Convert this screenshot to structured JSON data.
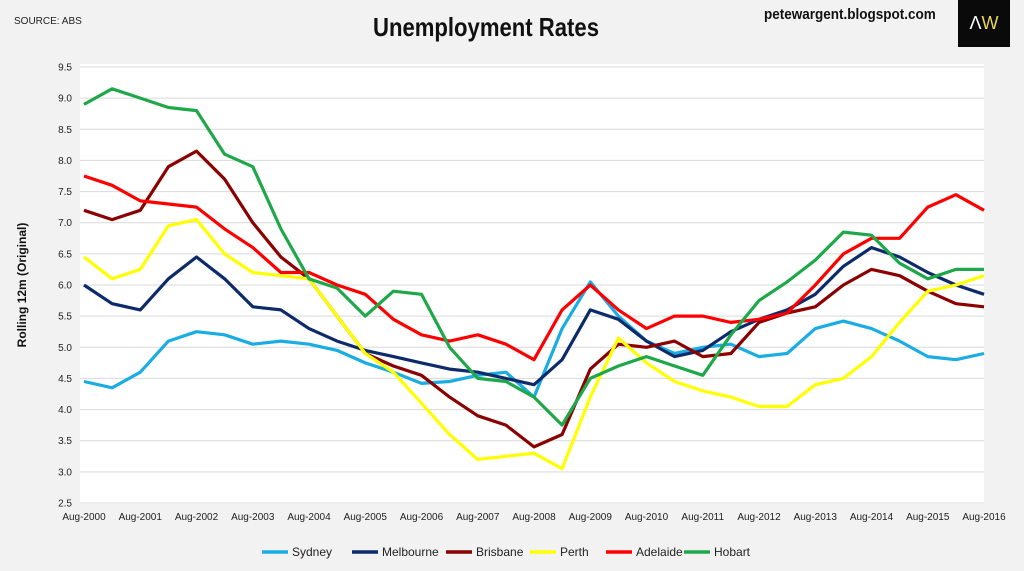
{
  "header": {
    "source": "SOURCE: ABS",
    "site": "petewargent.blogspot.com",
    "logo_text": "AW"
  },
  "chart_data": {
    "type": "line",
    "title": "Unemployment Rates",
    "xlabel": "",
    "ylabel": "Rolling 12m (Original)",
    "ylim": [
      2.5,
      9.5
    ],
    "yticks": [
      "2.5",
      "3.0",
      "3.5",
      "4.0",
      "4.5",
      "5.0",
      "5.5",
      "6.0",
      "6.5",
      "7.0",
      "7.5",
      "8.0",
      "8.5",
      "9.0",
      "9.5"
    ],
    "xticks": [
      "Aug-2000",
      "Aug-2001",
      "Aug-2002",
      "Aug-2003",
      "Aug-2004",
      "Aug-2005",
      "Aug-2006",
      "Aug-2007",
      "Aug-2008",
      "Aug-2009",
      "Aug-2010",
      "Aug-2011",
      "Aug-2012",
      "Aug-2013",
      "Aug-2014",
      "Aug-2015",
      "Aug-2016"
    ],
    "x_years_from_aug2000": [
      0,
      0.5,
      1,
      1.5,
      2,
      2.5,
      3,
      3.5,
      4,
      4.5,
      5,
      5.5,
      6,
      6.5,
      7,
      7.5,
      8,
      8.5,
      9,
      9.5,
      10,
      10.5,
      11,
      11.5,
      12,
      12.5,
      13,
      13.5,
      14,
      14.5,
      15,
      15.5,
      16
    ],
    "grid": true,
    "legend_position": "bottom",
    "series": [
      {
        "name": "Sydney",
        "color": "#1aade4",
        "values": [
          4.45,
          4.35,
          4.6,
          5.1,
          5.25,
          5.2,
          5.05,
          5.1,
          5.05,
          4.95,
          4.75,
          4.6,
          4.42,
          4.45,
          4.55,
          4.6,
          4.2,
          5.3,
          6.05,
          5.5,
          5.1,
          4.9,
          5.0,
          5.05,
          4.85,
          4.9,
          5.3,
          5.42,
          5.3,
          5.1,
          4.85,
          4.8,
          4.9
        ]
      },
      {
        "name": "Melbourne",
        "color": "#0d2a6b",
        "values": [
          6.0,
          5.7,
          5.6,
          6.1,
          6.45,
          6.1,
          5.65,
          5.6,
          5.3,
          5.1,
          4.95,
          4.85,
          4.75,
          4.65,
          4.6,
          4.5,
          4.4,
          4.8,
          5.6,
          5.45,
          5.1,
          4.85,
          4.95,
          5.25,
          5.45,
          5.6,
          5.85,
          6.3,
          6.6,
          6.45,
          6.2,
          6.0,
          5.85
        ]
      },
      {
        "name": "Brisbane",
        "color": "#8b0000",
        "values": [
          7.2,
          7.05,
          7.2,
          7.9,
          8.15,
          7.7,
          7.0,
          6.45,
          6.1,
          5.5,
          4.9,
          4.7,
          4.55,
          4.2,
          3.9,
          3.75,
          3.4,
          3.6,
          4.65,
          5.05,
          5.0,
          5.1,
          4.85,
          4.9,
          5.4,
          5.55,
          5.65,
          6.0,
          6.25,
          6.15,
          5.9,
          5.7,
          5.65
        ]
      },
      {
        "name": "Perth",
        "color": "#ffff00",
        "values": [
          6.45,
          6.1,
          6.25,
          6.95,
          7.05,
          6.5,
          6.2,
          6.15,
          6.1,
          5.5,
          4.9,
          4.6,
          4.1,
          3.6,
          3.2,
          3.25,
          3.3,
          3.05,
          4.2,
          5.15,
          4.75,
          4.45,
          4.3,
          4.2,
          4.05,
          4.05,
          4.4,
          4.5,
          4.85,
          5.4,
          5.9,
          6.0,
          6.15
        ]
      },
      {
        "name": "Adelaide",
        "color": "#ff0000",
        "values": [
          7.75,
          7.6,
          7.35,
          7.3,
          7.25,
          6.9,
          6.6,
          6.2,
          6.2,
          6.0,
          5.85,
          5.45,
          5.2,
          5.1,
          5.2,
          5.05,
          4.8,
          5.6,
          6.0,
          5.6,
          5.3,
          5.5,
          5.5,
          5.4,
          5.45,
          5.55,
          6.0,
          6.5,
          6.75,
          6.75,
          7.25,
          7.45,
          7.2
        ]
      },
      {
        "name": "Hobart",
        "color": "#1ea84a",
        "values": [
          8.9,
          9.15,
          9.0,
          8.85,
          8.8,
          8.1,
          7.9,
          6.9,
          6.1,
          5.95,
          5.5,
          5.9,
          5.85,
          5.0,
          4.5,
          4.45,
          4.2,
          3.75,
          4.5,
          4.7,
          4.85,
          4.7,
          4.55,
          5.2,
          5.75,
          6.05,
          6.4,
          6.85,
          6.8,
          6.35,
          6.1,
          6.25,
          6.25
        ]
      }
    ]
  }
}
